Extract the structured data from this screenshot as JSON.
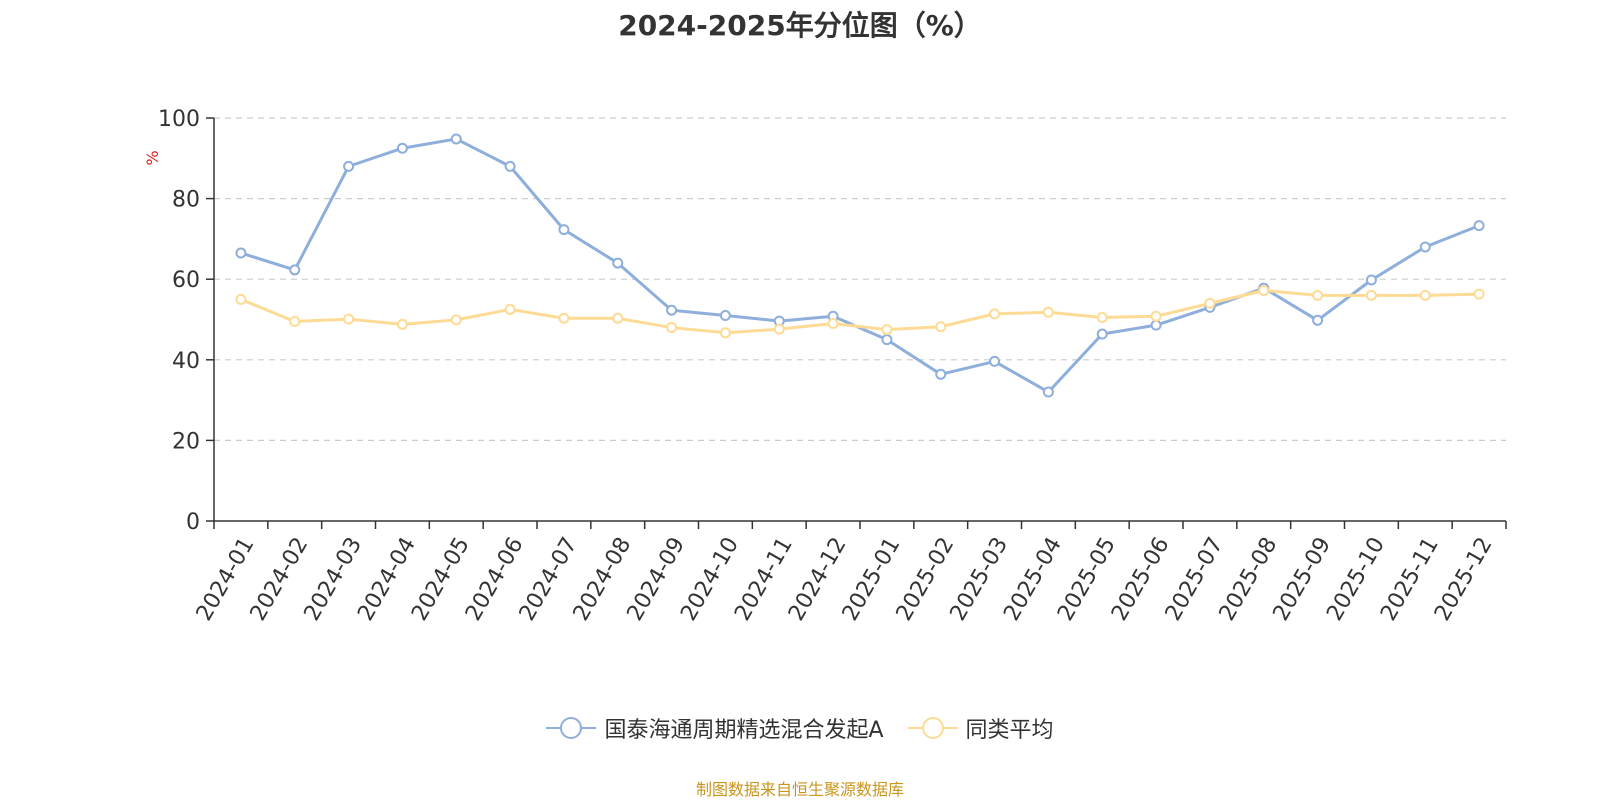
{
  "title": "2024-2025年分位图（%）",
  "source_note": "制图数据来自恒生聚源数据库",
  "colors": {
    "series_fund": "#8eaedb",
    "series_avg": "#fddb94",
    "axis": "#333333",
    "grid": "#cccccc",
    "unit_label": "#e02020",
    "source_note": "#c8961e"
  },
  "chart_data": {
    "type": "line",
    "title": "2024-2025年分位图（%）",
    "ylabel": "%",
    "ylim": [
      0,
      100
    ],
    "yticks": [
      "0",
      "20",
      "40",
      "60",
      "80",
      "100"
    ],
    "grid": "horizontal-dashed",
    "legend_position": "bottom",
    "categories": [
      "2024-01",
      "2024-02",
      "2024-03",
      "2024-04",
      "2024-05",
      "2024-06",
      "2024-07",
      "2024-08",
      "2024-09",
      "2024-10",
      "2024-11",
      "2024-12",
      "2025-01",
      "2025-02",
      "2025-03",
      "2025-04",
      "2025-05",
      "2025-06",
      "2025-07",
      "2025-08",
      "2025-09",
      "2025-10",
      "2025-11",
      "2025-12"
    ],
    "series": [
      {
        "name": "国泰海通周期精选混合发起A",
        "color": "#8eaedb",
        "values": [
          66.5,
          62.3,
          88.0,
          92.5,
          94.8,
          88.0,
          72.3,
          64.0,
          52.3,
          51.0,
          49.6,
          50.8,
          45.0,
          36.4,
          39.6,
          32.0,
          46.4,
          48.6,
          53.0,
          57.8,
          49.8,
          59.8,
          68.0,
          73.3
        ]
      },
      {
        "name": "同类平均",
        "color": "#fddb94",
        "values": [
          55.0,
          49.5,
          50.1,
          48.8,
          49.9,
          52.5,
          50.3,
          50.3,
          48.0,
          46.7,
          47.6,
          49.0,
          47.5,
          48.2,
          51.4,
          51.8,
          50.5,
          50.8,
          54.0,
          57.2,
          56.0,
          56.0,
          56.0,
          56.3
        ]
      }
    ]
  }
}
